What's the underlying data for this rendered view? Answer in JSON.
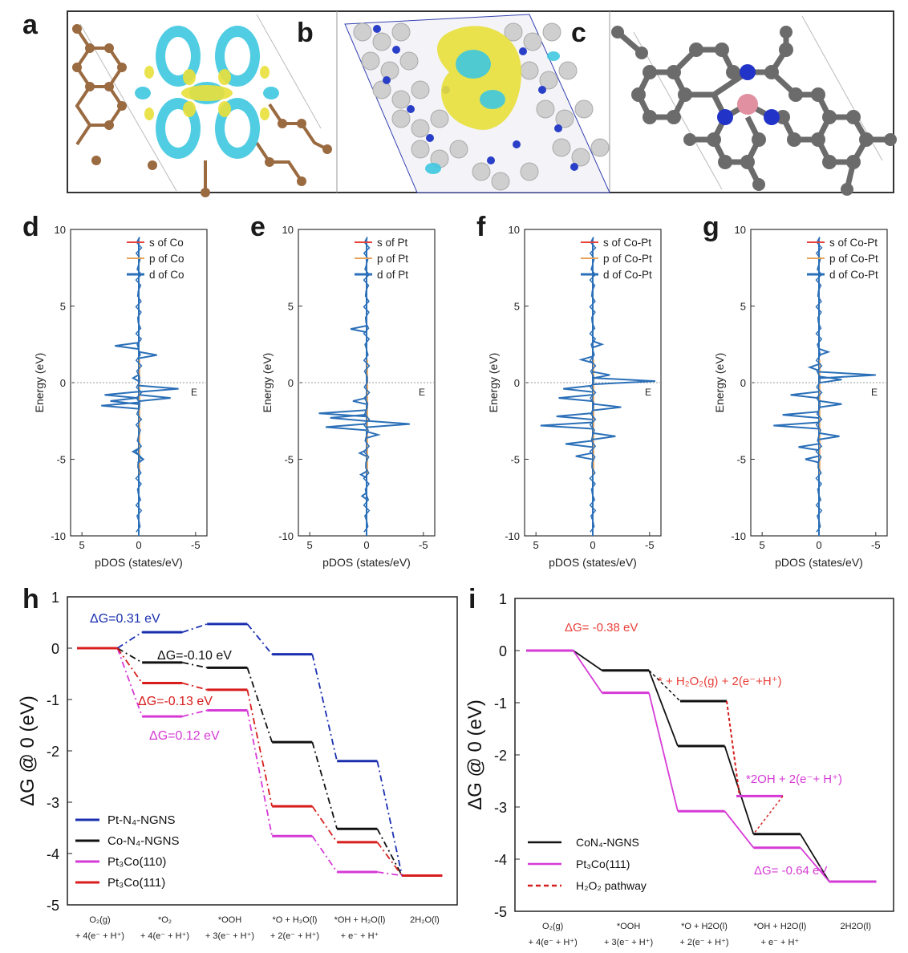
{
  "panel_labels": {
    "a": "a",
    "b": "b",
    "c": "c",
    "d": "d",
    "e": "e",
    "f": "f",
    "g": "g",
    "h": "h",
    "i": "i"
  },
  "colors": {
    "s": "#e8403a",
    "p": "#e8a35a",
    "d": "#2a6fb8",
    "pt_n4": "#1a2fb0",
    "co_n4": "#111111",
    "pt3co110": "#d63ad6",
    "pt3co111": "#d81d1d",
    "h2o2": "#d81d1d"
  },
  "chart_data": [
    {
      "id": "d",
      "type": "line",
      "xlabel": "pDOS (states/eV)",
      "ylabel": "Energy (eV)",
      "ylim": [
        -10,
        10
      ],
      "xlim": [
        6,
        -6
      ],
      "xticks": [
        "5",
        "0",
        "-5"
      ],
      "yticks": [
        "10",
        "5",
        "0",
        "-5",
        "-10"
      ],
      "fermi_label": "E",
      "legend": [
        "s of Co",
        "p of Co",
        "d of Co"
      ],
      "peaks": [
        [
          2.4,
          2.1
        ],
        [
          1.8,
          -1.6
        ],
        [
          0.3,
          0.5
        ],
        [
          -0.4,
          -3.5
        ],
        [
          -0.8,
          3.0
        ],
        [
          -1.2,
          2.5
        ],
        [
          -1.5,
          3.3
        ],
        [
          -1.0,
          -2.8
        ],
        [
          -4.5,
          0.5
        ],
        [
          -5.0,
          -0.4
        ]
      ]
    },
    {
      "id": "e",
      "type": "line",
      "xlabel": "pDOS (states/eV)",
      "ylabel": "Energy (eV)",
      "ylim": [
        -10,
        10
      ],
      "xlim": [
        6,
        -6
      ],
      "xticks": [
        "5",
        "0",
        "-5"
      ],
      "yticks": [
        "10",
        "5",
        "0",
        "-5",
        "-10"
      ],
      "fermi_label": "E",
      "legend": [
        "s of Pt",
        "p of Pt",
        "d of Pt"
      ],
      "peaks": [
        [
          3.5,
          1.4
        ],
        [
          -1.2,
          1.2
        ],
        [
          -2.0,
          4.2
        ],
        [
          -2.3,
          3.2
        ],
        [
          -2.7,
          -3.8
        ],
        [
          -2.9,
          3.6
        ],
        [
          -3.4,
          -1.0
        ],
        [
          -4.6,
          0.6
        ],
        [
          -6.0,
          0.5
        ],
        [
          -7.4,
          0.4
        ]
      ]
    },
    {
      "id": "f",
      "type": "line",
      "xlabel": "pDOS (states/eV)",
      "ylabel": "Energy (eV)",
      "ylim": [
        -10,
        10
      ],
      "xlim": [
        6,
        -6
      ],
      "xticks": [
        "5",
        "0",
        "-5"
      ],
      "yticks": [
        "10",
        "5",
        "0",
        "-5",
        "-10"
      ],
      "fermi_label": "E",
      "legend": [
        "s of Co-Pt",
        "p of Co-Pt",
        "d of Co-Pt"
      ],
      "peaks": [
        [
          0.5,
          -1.5
        ],
        [
          0.1,
          -5.5
        ],
        [
          -0.4,
          2.6
        ],
        [
          -1.0,
          3.0
        ],
        [
          -1.6,
          -2.5
        ],
        [
          -2.2,
          3.2
        ],
        [
          -2.8,
          4.6
        ],
        [
          -3.5,
          -2.0
        ],
        [
          -4.0,
          2.4
        ],
        [
          -4.8,
          1.5
        ],
        [
          1.5,
          1.0
        ],
        [
          2.5,
          -0.8
        ]
      ]
    },
    {
      "id": "g",
      "type": "line",
      "xlabel": "pDOS (states/eV)",
      "ylabel": "Energy (eV)",
      "ylim": [
        -10,
        10
      ],
      "xlim": [
        6,
        -6
      ],
      "xticks": [
        "5",
        "0",
        "-5"
      ],
      "yticks": [
        "10",
        "5",
        "0",
        "-5",
        "-10"
      ],
      "fermi_label": "E",
      "legend": [
        "s of Co-Pt",
        "p of Co-Pt",
        "d of Co-Pt"
      ],
      "peaks": [
        [
          0.5,
          -5.0
        ],
        [
          0.2,
          -2.0
        ],
        [
          -0.8,
          2.5
        ],
        [
          -1.4,
          -2.0
        ],
        [
          -2.1,
          3.2
        ],
        [
          -2.8,
          4.0
        ],
        [
          -3.5,
          -1.8
        ],
        [
          -4.2,
          1.8
        ],
        [
          -5.0,
          1.2
        ],
        [
          1.0,
          0.8
        ],
        [
          2.0,
          -0.8
        ]
      ]
    },
    {
      "id": "h",
      "type": "line",
      "ylabel": "ΔG @ 0 (eV)",
      "ylim": [
        -5,
        1
      ],
      "yticks": [
        "1",
        "0",
        "-1",
        "-2",
        "-3",
        "-4",
        "-5"
      ],
      "steps": [
        {
          "line1": "O₂(g)",
          "line2": "+ 4(e⁻ + H⁺)"
        },
        {
          "line1": "*O₂",
          "line2": "+ 4(e⁻ + H⁺)"
        },
        {
          "line1": "*OOH",
          "line2": "+ 3(e⁻ + H⁺)"
        },
        {
          "line1": "*O + H₂O(l)",
          "line2": "+ 2(e⁻ + H⁺)"
        },
        {
          "line1": "*OH + H₂O(l)",
          "line2": "+ e⁻ + H⁺"
        },
        {
          "line1": "2H₂O(l)",
          "line2": ""
        }
      ],
      "series": [
        {
          "name": "Pt-N₄-NGNS",
          "color": "#1a2fb0",
          "values": [
            0,
            0.31,
            0.47,
            -0.12,
            -2.2,
            -4.43
          ]
        },
        {
          "name": "Co-N₄-NGNS",
          "color": "#111111",
          "values": [
            0,
            -0.28,
            -0.38,
            -1.83,
            -3.52,
            -4.43
          ]
        },
        {
          "name": "Pt₃Co(110)",
          "color": "#d63ad6",
          "values": [
            0,
            -1.33,
            -1.21,
            -3.66,
            -4.36,
            -4.43
          ]
        },
        {
          "name": "Pt₃Co(111)",
          "color": "#d81d1d",
          "values": [
            0,
            -0.68,
            -0.81,
            -3.08,
            -3.78,
            -4.43
          ]
        }
      ],
      "annotations": [
        {
          "text": "ΔG=0.31 eV",
          "color": "#1a2fb0"
        },
        {
          "text": "ΔG=-0.10 eV",
          "color": "#111111"
        },
        {
          "text": "ΔG=-0.13 eV",
          "color": "#d81d1d"
        },
        {
          "text": "ΔG=0.12 eV",
          "color": "#d63ad6"
        }
      ],
      "legend": [
        "Pt-N₄-NGNS",
        "Co-N₄-NGNS",
        "Pt₃Co(110)",
        "Pt₃Co(111)"
      ]
    },
    {
      "id": "i",
      "type": "line",
      "ylabel": "ΔG @ 0 (eV)",
      "ylim": [
        -5,
        1
      ],
      "yticks": [
        "1",
        "0",
        "-1",
        "-2",
        "-3",
        "-4",
        "-5"
      ],
      "steps": [
        {
          "line1": "O₂(g)",
          "line2": "+ 4(e⁻ + H⁺)"
        },
        {
          "line1": "*OOH",
          "line2": "+ 3(e⁻ + H⁺)"
        },
        {
          "line1": "*O + H2O(l)",
          "line2": "+ 2(e⁻ + H⁺)"
        },
        {
          "line1": "*OH + H2O(l)",
          "line2": "+ e⁻ + H⁺"
        },
        {
          "line1": "2H2O(l)",
          "line2": ""
        }
      ],
      "series": [
        {
          "name": "CoN₄-NGNS",
          "color": "#111111",
          "values": [
            0,
            -0.38,
            -1.83,
            -3.52,
            -4.43
          ]
        },
        {
          "name": "Pt₃Co(111)",
          "color": "#d63ad6",
          "values": [
            0,
            -0.81,
            -3.08,
            -3.78,
            -4.43
          ]
        }
      ],
      "h2o2_pathway": {
        "name": "H₂O₂ pathway",
        "color": "#d81d1d",
        "values": [
          -0.38,
          -0.97,
          -2.79,
          -3.52
        ]
      },
      "annotations": [
        {
          "text": "ΔG= -0.38 eV",
          "color": "#e8403a"
        },
        {
          "text": "* + H₂O₂(g) + 2(e⁻+H⁺)",
          "color": "#e8403a"
        },
        {
          "text": "*2OH + 2(e⁻+ H⁺)",
          "color": "#d63ad6"
        },
        {
          "text": "ΔG= -0.64 eV",
          "color": "#d63ad6"
        }
      ],
      "legend": [
        "CoN₄-NGNS",
        "Pt₃Co(111)",
        "H₂O₂ pathway"
      ]
    }
  ]
}
